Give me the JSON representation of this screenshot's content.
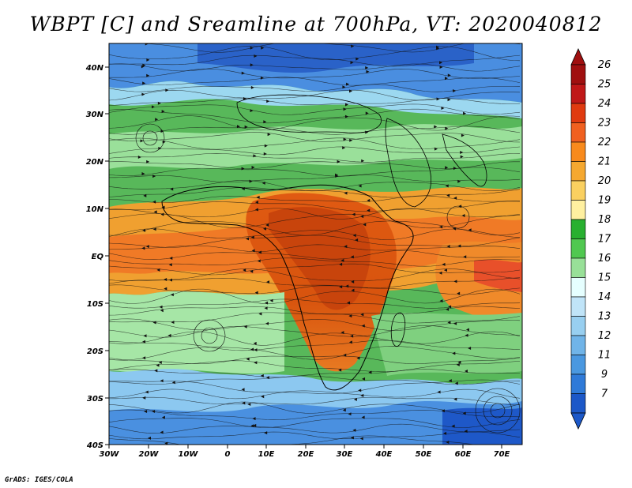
{
  "title": "WBPT [C] and Sreamline at 700hPa, VT: 2020040812",
  "credit": "GrADS: IGES/COLA",
  "map": {
    "lat_labels": [
      "40N",
      "30N",
      "20N",
      "10N",
      "EQ",
      "10S",
      "20S",
      "30S",
      "40S"
    ],
    "lon_labels": [
      "30W",
      "20W",
      "10W",
      "0",
      "10E",
      "20E",
      "30E",
      "40E",
      "50E",
      "60E",
      "70E"
    ]
  },
  "colorbar": {
    "labels": [
      "26",
      "25",
      "24",
      "23",
      "22",
      "21",
      "20",
      "19",
      "18",
      "17",
      "16",
      "15",
      "14",
      "13",
      "12",
      "11",
      "9",
      "7"
    ],
    "colors": [
      "#a01010",
      "#c01818",
      "#e03a10",
      "#f06020",
      "#f88a1c",
      "#f5a830",
      "#fad060",
      "#fff0a0",
      "#28b030",
      "#50c850",
      "#98e098",
      "#e6ffff",
      "#c0e4f8",
      "#98cff0",
      "#70b4e8",
      "#4a98e0",
      "#2f7ad8",
      "#1c58c8"
    ]
  }
}
